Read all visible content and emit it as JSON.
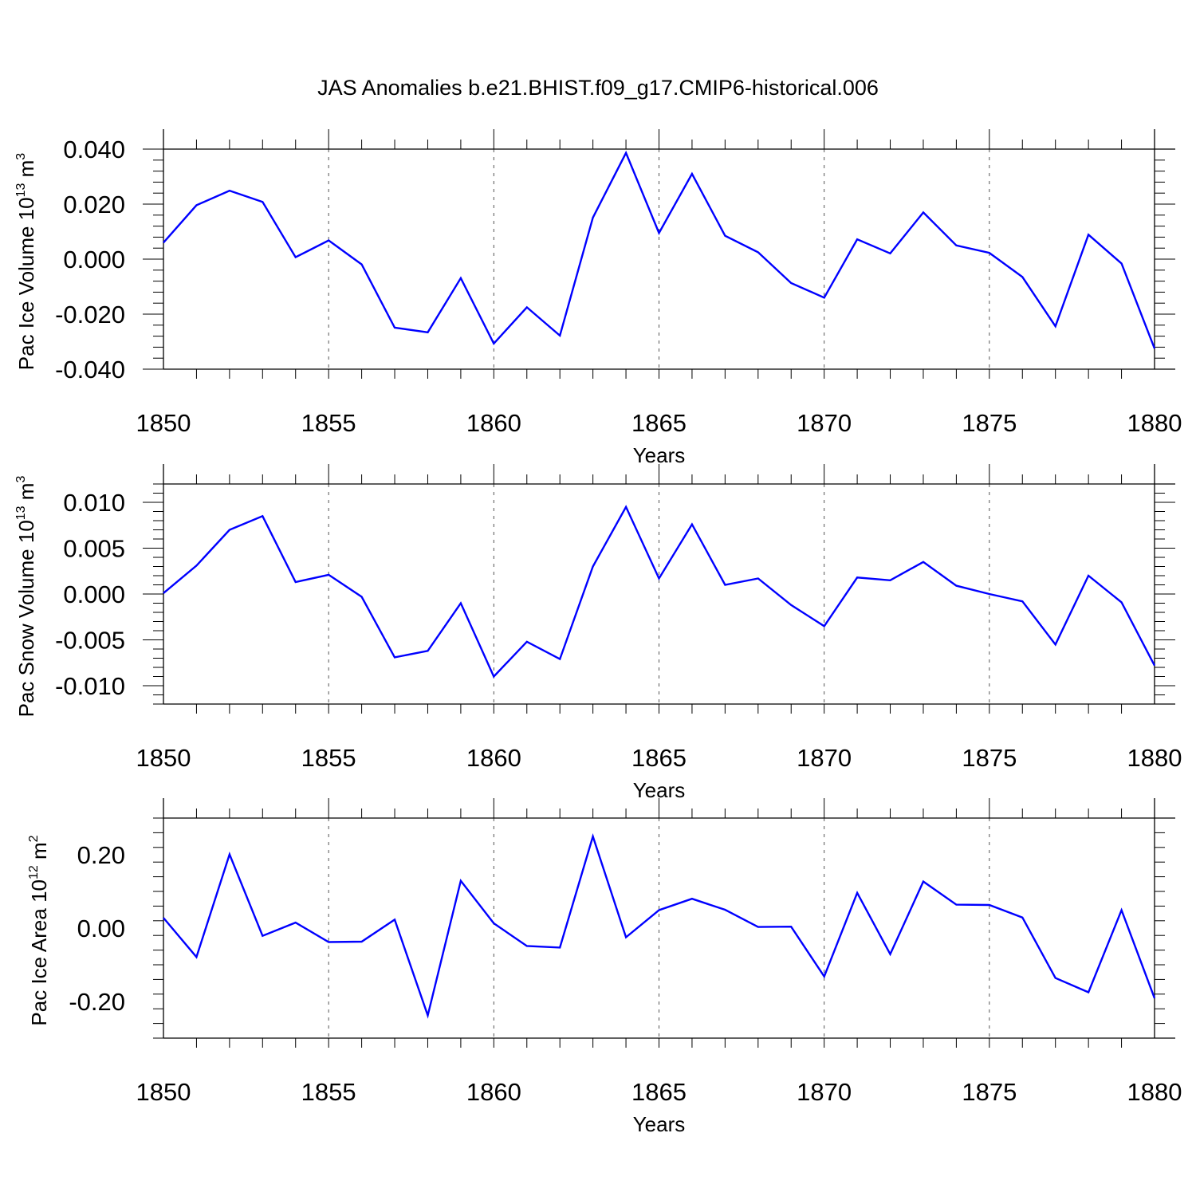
{
  "title": "JAS Anomalies b.e21.BHIST.f09_g17.CMIP6-historical.006",
  "colors": {
    "series": "#0000ff",
    "axes": "#000000",
    "grid": "#555555"
  },
  "chart_data": [
    {
      "type": "line",
      "ylabel_main": "Pac Ice Volume 10",
      "ylabel_exp": "13",
      "ylabel_unit": "m",
      "ylabel_unit_exp": "3",
      "xlabel": "Years",
      "xlim": [
        1850,
        1880
      ],
      "ylim": [
        -0.04,
        0.04
      ],
      "xticks": [
        1850,
        1855,
        1860,
        1865,
        1870,
        1875,
        1880
      ],
      "xtick_labels": [
        "1850",
        "1855",
        "1860",
        "1865",
        "1870",
        "1875",
        "1880"
      ],
      "yticks": [
        -0.04,
        -0.02,
        0.0,
        0.02,
        0.04
      ],
      "ytick_labels": [
        "-0.040",
        "-0.020",
        "0.000",
        "0.020",
        "0.040"
      ],
      "grid": "vertical dashed at major x ticks",
      "x": [
        1850,
        1851,
        1852,
        1853,
        1854,
        1855,
        1856,
        1857,
        1858,
        1859,
        1860,
        1861,
        1862,
        1863,
        1864,
        1865,
        1866,
        1867,
        1868,
        1869,
        1870,
        1871,
        1872,
        1873,
        1874,
        1875,
        1876,
        1877,
        1878,
        1879,
        1880
      ],
      "values": [
        0.006,
        0.0196,
        0.0249,
        0.0208,
        0.0007,
        0.0068,
        -0.0019,
        -0.0249,
        -0.0266,
        -0.0069,
        -0.0307,
        -0.0175,
        -0.0278,
        0.0151,
        0.0386,
        0.0095,
        0.031,
        0.0085,
        0.0025,
        -0.0087,
        -0.014,
        0.0072,
        0.0021,
        0.017,
        0.005,
        0.0023,
        -0.0065,
        -0.0244,
        0.0089,
        -0.0016,
        -0.0325
      ]
    },
    {
      "type": "line",
      "ylabel_main": "Pac Snow Volume 10",
      "ylabel_exp": "13",
      "ylabel_unit": "m",
      "ylabel_unit_exp": "3",
      "xlabel": "Years",
      "xlim": [
        1850,
        1880
      ],
      "ylim": [
        -0.012,
        0.012
      ],
      "xticks": [
        1850,
        1855,
        1860,
        1865,
        1870,
        1875,
        1880
      ],
      "xtick_labels": [
        "1850",
        "1855",
        "1860",
        "1865",
        "1870",
        "1875",
        "1880"
      ],
      "yticks": [
        -0.01,
        -0.005,
        0.0,
        0.005,
        0.01
      ],
      "ytick_labels": [
        "-0.010",
        "-0.005",
        "0.000",
        "0.005",
        "0.010"
      ],
      "grid": "vertical dashed at major x ticks",
      "x": [
        1850,
        1851,
        1852,
        1853,
        1854,
        1855,
        1856,
        1857,
        1858,
        1859,
        1860,
        1861,
        1862,
        1863,
        1864,
        1865,
        1866,
        1867,
        1868,
        1869,
        1870,
        1871,
        1872,
        1873,
        1874,
        1875,
        1876,
        1877,
        1878,
        1879,
        1880
      ],
      "values": [
        0.0001,
        0.0031,
        0.007,
        0.0085,
        0.0013,
        0.0021,
        -0.0003,
        -0.0069,
        -0.0062,
        -0.001,
        -0.009,
        -0.0052,
        -0.0071,
        0.003,
        0.0095,
        0.0017,
        0.0076,
        0.001,
        0.0017,
        -0.0012,
        -0.0035,
        0.0018,
        0.0015,
        0.0035,
        0.0009,
        0.0,
        -0.0008,
        -0.0055,
        0.002,
        -0.0009,
        -0.0078
      ]
    },
    {
      "type": "line",
      "ylabel_main": "Pac Ice Area 10",
      "ylabel_exp": "12",
      "ylabel_unit": "m",
      "ylabel_unit_exp": "2",
      "xlabel": "Years",
      "xlim": [
        1850,
        1880
      ],
      "ylim": [
        -0.3,
        0.3
      ],
      "xticks": [
        1850,
        1855,
        1860,
        1865,
        1870,
        1875,
        1880
      ],
      "xtick_labels": [
        "1850",
        "1855",
        "1860",
        "1865",
        "1870",
        "1875",
        "1880"
      ],
      "yticks": [
        -0.2,
        0.0,
        0.2
      ],
      "ytick_labels": [
        "-0.20",
        "0.00",
        "0.20"
      ],
      "grid": "vertical dashed at major x ticks",
      "x": [
        1850,
        1851,
        1852,
        1853,
        1854,
        1855,
        1856,
        1857,
        1858,
        1859,
        1860,
        1861,
        1862,
        1863,
        1864,
        1865,
        1866,
        1867,
        1868,
        1869,
        1870,
        1871,
        1872,
        1873,
        1874,
        1875,
        1876,
        1877,
        1878,
        1879,
        1880
      ],
      "values": [
        0.028,
        -0.079,
        0.201,
        -0.021,
        0.015,
        -0.038,
        -0.037,
        0.023,
        -0.238,
        0.129,
        0.013,
        -0.049,
        -0.053,
        0.25,
        -0.025,
        0.049,
        0.08,
        0.05,
        0.003,
        0.004,
        -0.132,
        0.096,
        -0.071,
        0.127,
        0.064,
        0.063,
        0.029,
        -0.136,
        -0.175,
        0.049,
        -0.191
      ]
    }
  ]
}
